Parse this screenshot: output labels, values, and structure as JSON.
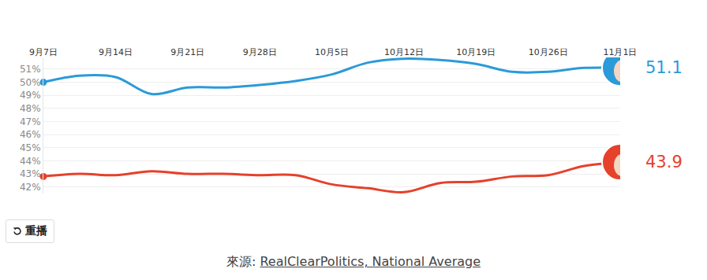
{
  "chart_data": {
    "type": "line",
    "categories": [
      "9月7日",
      null,
      "9月14日",
      null,
      "9月21日",
      null,
      "9月28日",
      null,
      "10月5日",
      null,
      "10月12日",
      null,
      "10月19日",
      null,
      "10月26日",
      null,
      "11月1日"
    ],
    "series": [
      {
        "color": "#2b9ad8",
        "values": [
          50.0,
          50.5,
          50.4,
          49.1,
          49.6,
          49.6,
          49.8,
          50.1,
          50.6,
          51.5,
          51.8,
          51.7,
          51.4,
          50.8,
          50.8,
          51.1,
          51.1
        ]
      },
      {
        "color": "#e5412b",
        "values": [
          42.8,
          43.0,
          42.9,
          43.2,
          43.0,
          43.0,
          42.9,
          42.9,
          42.2,
          41.9,
          41.6,
          42.3,
          42.4,
          42.8,
          42.9,
          43.6,
          43.9
        ]
      }
    ],
    "ylim": [
      41.5,
      51.9
    ],
    "yticks": [
      {
        "value": 42,
        "label": "42%"
      },
      {
        "value": 43,
        "label": "43%"
      },
      {
        "value": 44,
        "label": "44%"
      },
      {
        "value": 45,
        "label": "45%"
      },
      {
        "value": 46,
        "label": "46%"
      },
      {
        "value": 47,
        "label": "47%"
      },
      {
        "value": 48,
        "label": "48%"
      },
      {
        "value": 49,
        "label": "49%"
      },
      {
        "value": 50,
        "label": "50%"
      },
      {
        "value": 51,
        "label": "51%"
      }
    ],
    "grid": true,
    "annotations": [
      {
        "x": 16,
        "y": 51.1,
        "text": "51.1",
        "color": "#2b9ad8"
      },
      {
        "x": 16,
        "y": 43.9,
        "text": "43.9",
        "color": "#e5412b"
      }
    ]
  },
  "footer": {
    "button": "重播",
    "source_label": "來源:",
    "source_link": "RealClearPolitics, National Average"
  }
}
